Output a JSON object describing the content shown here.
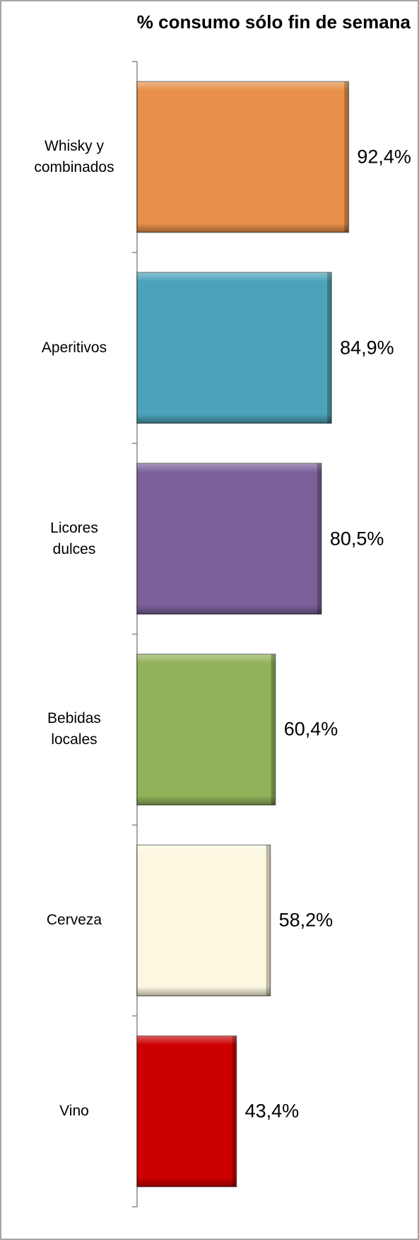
{
  "chart_data": {
    "type": "barh",
    "title": "% consumo sólo fin de semana",
    "categories": [
      "Whisky y combinados",
      "Aperitivos",
      "Licores dulces",
      "Bebidas locales",
      "Cerveza",
      "Vino"
    ],
    "values": [
      92.4,
      84.9,
      80.5,
      60.4,
      58.2,
      43.4
    ],
    "value_labels": [
      "92,4%",
      "84,9%",
      "80,5%",
      "60,4%",
      "58,2%",
      "43,4%"
    ],
    "colors": [
      "#e8904a",
      "#4ba3ba",
      "#7b609a",
      "#92b25a",
      "#fcf8e0",
      "#cc0000"
    ],
    "xlim": [
      0,
      100
    ]
  }
}
